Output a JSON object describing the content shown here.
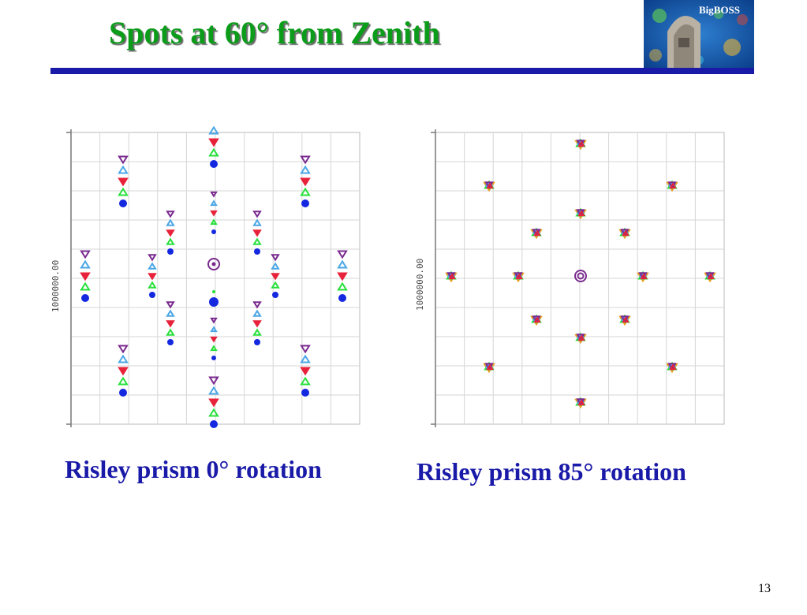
{
  "slide": {
    "title": "Spots at 60° from Zenith",
    "page_number": "13",
    "logo_text": "BigBOSS",
    "colors": {
      "title": "#0b9c1a",
      "rule": "#1a1aa8",
      "caption": "#1a1aa8"
    }
  },
  "plots": [
    {
      "caption": "Risley prism 0° rotation",
      "axis_label": "1000000.00"
    },
    {
      "caption": "Risley prism 85° rotation",
      "axis_label": "1000000.00"
    }
  ]
}
